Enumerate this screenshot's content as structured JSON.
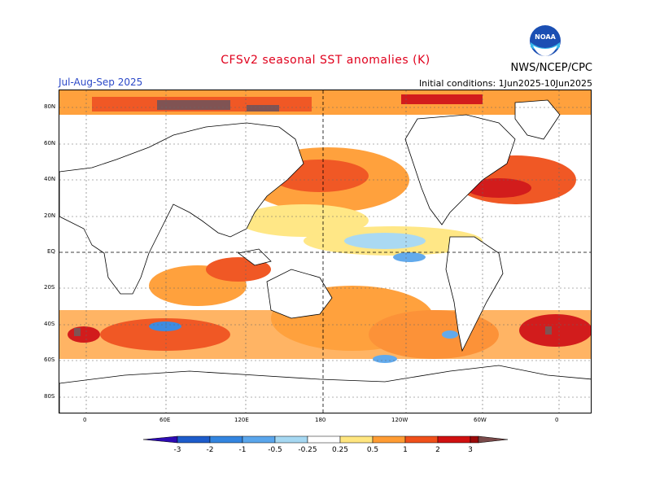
{
  "header": {
    "title": "CFSv2 seasonal SST anomalies (K)",
    "agency": "NWS/NCEP/CPC",
    "period": "Jul-Aug-Sep 2025",
    "initial_conditions": "Initial conditions: 1Jun2025-10Jun2025",
    "logo_text": "NOAA"
  },
  "map": {
    "lat_labels": [
      "80N",
      "60N",
      "40N",
      "20N",
      "EQ",
      "20S",
      "40S",
      "60S",
      "80S"
    ],
    "lon_labels": [
      "0",
      "60E",
      "120E",
      "180",
      "120W",
      "60W",
      "0"
    ]
  },
  "legend": {
    "ticks": [
      "-3",
      "-2",
      "-1",
      "-0.5",
      "-0.25",
      "0.25",
      "0.5",
      "1",
      "2",
      "3"
    ],
    "colors": [
      "#2e0bb4",
      "#1d5ccb",
      "#3385e0",
      "#5aa6ec",
      "#a6d8f2",
      "#ffffff",
      "#ffe680",
      "#ff9c33",
      "#f0501a",
      "#d01010",
      "#9b0a0a",
      "#7a4a4a"
    ]
  },
  "colors": {
    "title": "#e0001c",
    "period": "#2c49c8"
  }
}
